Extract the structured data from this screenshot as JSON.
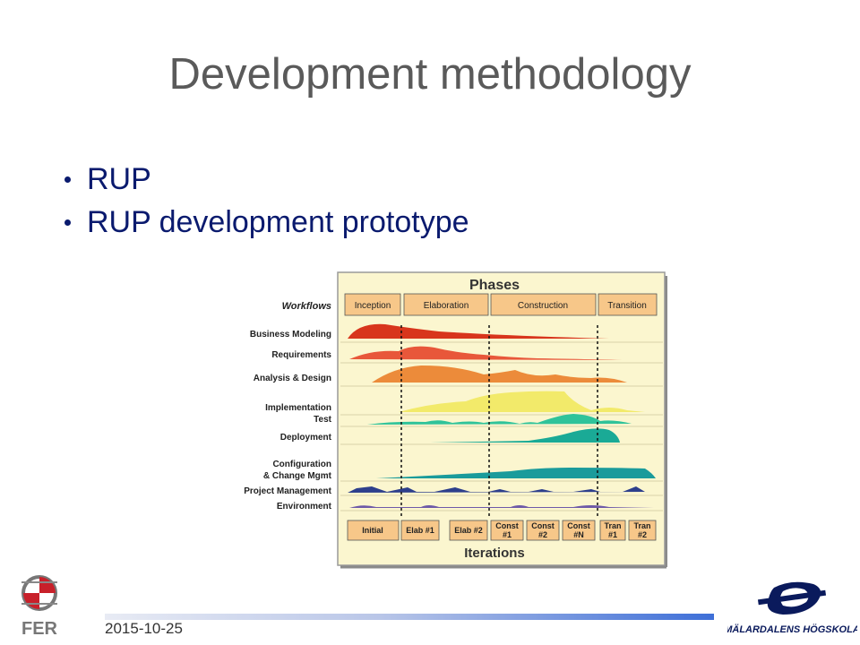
{
  "slide": {
    "title": "Development methodology",
    "bullets": [
      "RUP",
      "RUP development prototype"
    ],
    "date": "2015-10-25"
  },
  "diagram": {
    "phases_title": "Phases",
    "workflows_title": "Workflows",
    "iterations_title": "Iterations",
    "phases": [
      "Inception",
      "Elaboration",
      "Construction",
      "Transition"
    ],
    "workflows": [
      {
        "label": "Business Modeling",
        "color": "#d8351c"
      },
      {
        "label": "Requirements",
        "color": "#e8573a"
      },
      {
        "label": "Analysis & Design",
        "color": "#ec8b3a"
      },
      {
        "label": "Implementation",
        "color": "#f2ea6a"
      },
      {
        "label": "Test",
        "color": "#2fc39a"
      },
      {
        "label": "Deployment",
        "color": "#1aaa96"
      },
      {
        "label": "Configuration",
        "color": "#1a9b9b"
      },
      {
        "label": "& Change Mgmt",
        "color": "#1a9b9b"
      },
      {
        "label": "Project Management",
        "color": "#2d3f8c"
      },
      {
        "label": "Environment",
        "color": "#6e5aa8"
      }
    ],
    "iterations": [
      [
        "Initial"
      ],
      [
        "Elab #1"
      ],
      [
        "Elab #2"
      ],
      [
        "Const",
        "#1"
      ],
      [
        "Const",
        "#2"
      ],
      [
        "Const",
        "#N"
      ],
      [
        "Tran",
        "#1"
      ],
      [
        "Tran",
        "#2"
      ]
    ],
    "colors": {
      "panel": "#fbf6cf",
      "header_box": "#f7c789",
      "frame": "#9a9a9a"
    }
  },
  "logos": {
    "left": "FER",
    "right": "MÄLARDALENS HÖGSKOLA"
  }
}
